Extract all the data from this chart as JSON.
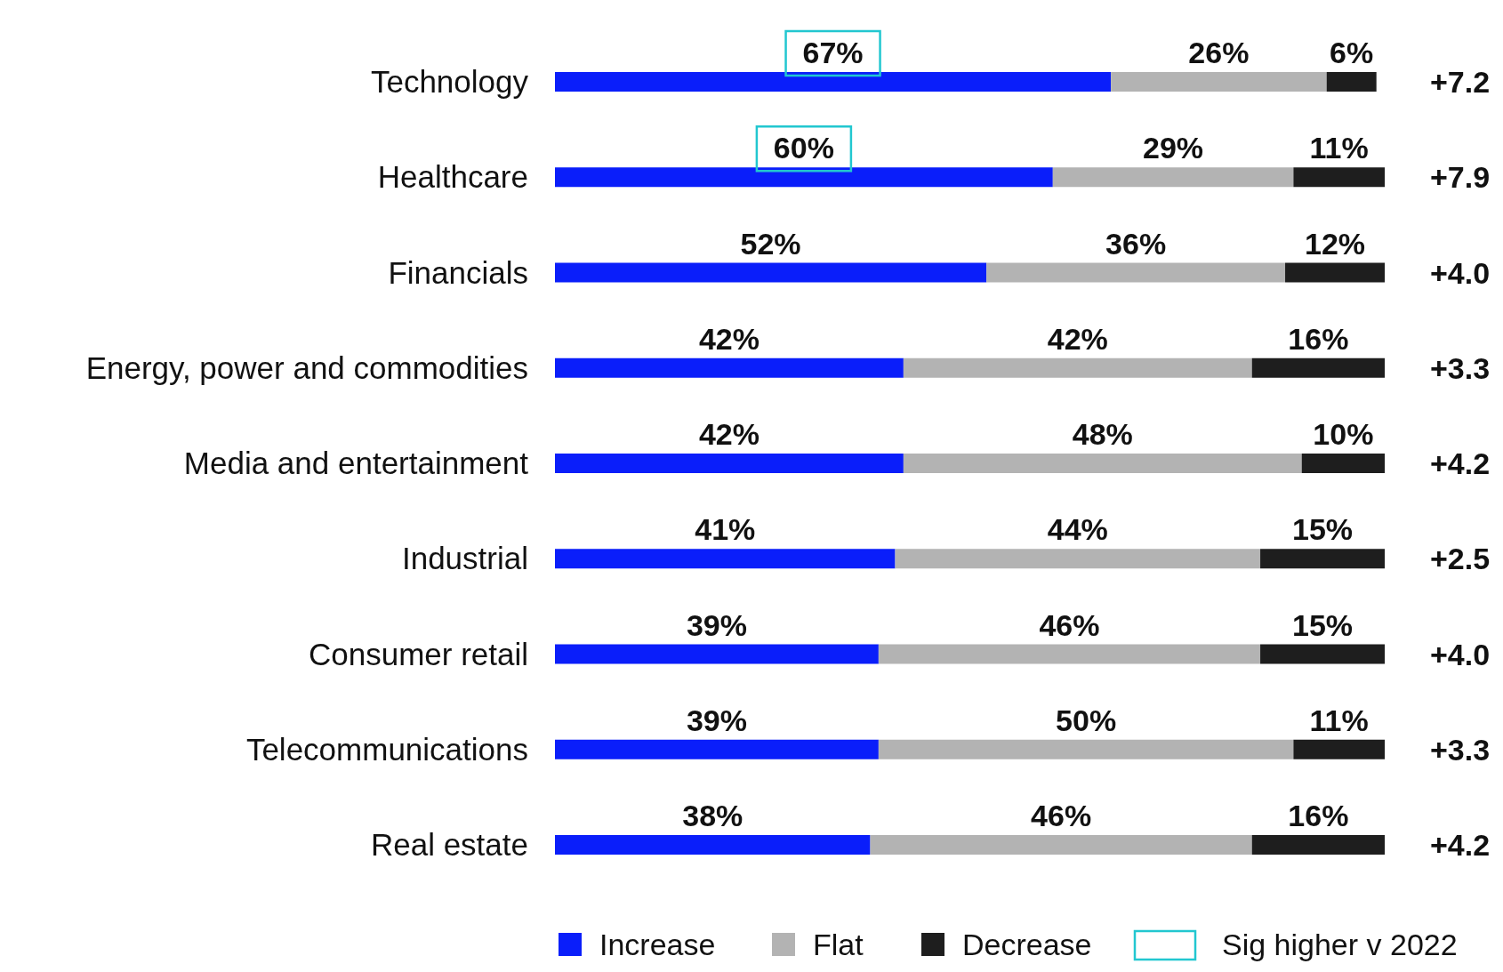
{
  "chart_data": {
    "type": "bar",
    "orientation": "horizontal",
    "stacked": true,
    "legend": "bottom",
    "categories": [
      "Technology",
      "Healthcare",
      "Financials",
      "Energy, power and commodities",
      "Media and entertainment",
      "Industrial",
      "Consumer retail",
      "Telecommunications",
      "Real estate"
    ],
    "series": [
      {
        "name": "Increase",
        "color": "#0a1efa",
        "values": [
          67,
          60,
          52,
          42,
          42,
          41,
          39,
          39,
          38
        ],
        "value_labels": [
          null,
          null,
          "52%",
          "42%",
          "42%",
          "41%",
          "39%",
          "39%",
          "38%"
        ]
      },
      {
        "name": "Flat",
        "color": "#b3b3b3",
        "values": [
          26,
          29,
          36,
          42,
          48,
          44,
          46,
          50,
          46
        ],
        "value_labels": [
          "26%",
          "29%",
          "36%",
          "42%",
          "48%",
          "44%",
          "46%",
          "50%",
          "46%"
        ]
      },
      {
        "name": "Decrease",
        "color": "#1e1e1e",
        "values": [
          6,
          11,
          12,
          16,
          10,
          15,
          15,
          11,
          16
        ],
        "value_labels": [
          "6%",
          "11%",
          "12%",
          "16%",
          "10%",
          "15%",
          "15%",
          "11%",
          "16%"
        ]
      }
    ],
    "annotations": [
      "Sig higher v 2022",
      "+7.2",
      "+7.9",
      "+4.0",
      "+3.3",
      "+4.2",
      "+2.5",
      "+4.0",
      "+3.3",
      "+4.2",
      "67%",
      "60%"
    ]
  }
}
